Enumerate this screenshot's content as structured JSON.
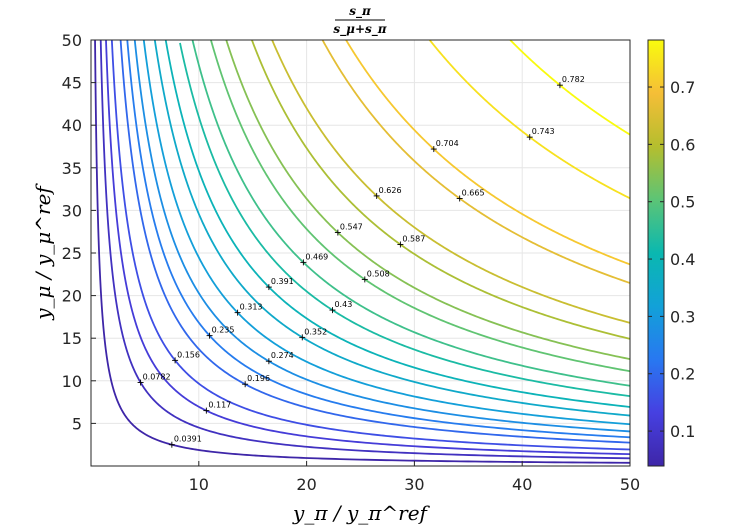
{
  "chart_data": {
    "type": "contour",
    "title": {
      "numerator": "s_π",
      "denominator": "s_μ+s_π"
    },
    "xlabel": "y_π / y_π^ref",
    "ylabel": "y_μ / y_μ^ref",
    "xlim": [
      0,
      50
    ],
    "ylim": [
      0,
      50
    ],
    "xticks": [
      "10",
      "20",
      "30",
      "40",
      "50"
    ],
    "yticks": [
      "5",
      "10",
      "15",
      "20",
      "25",
      "30",
      "35",
      "40",
      "45",
      "50"
    ],
    "grid": true,
    "levels": [
      0.0391,
      0.0782,
      0.117,
      0.156,
      0.196,
      0.235,
      0.274,
      0.313,
      0.352,
      0.391,
      0.43,
      0.469,
      0.508,
      0.547,
      0.587,
      0.626,
      0.665,
      0.704,
      0.743,
      0.782
    ],
    "level_label_texts": [
      "0.0391",
      "0.0782",
      "0.117",
      "0.156",
      "0.196",
      "0.235",
      "0.274",
      "0.313",
      "0.352",
      "0.391",
      "0.43",
      "0.469",
      "0.508",
      "0.547",
      "0.587",
      "0.626",
      "0.665",
      "0.704",
      "0.743",
      "0.782"
    ],
    "level_label_points": [
      [
        7.5,
        2.5
      ],
      [
        4.6,
        9.8
      ],
      [
        10.7,
        6.5
      ],
      [
        7.8,
        12.4
      ],
      [
        14.3,
        9.6
      ],
      [
        11,
        15.3
      ],
      [
        16.5,
        12.3
      ],
      [
        13.6,
        18
      ],
      [
        19.6,
        15.1
      ],
      [
        16.5,
        21
      ],
      [
        22.4,
        18.3
      ],
      [
        19.7,
        23.9
      ],
      [
        25.4,
        21.9
      ],
      [
        22.9,
        27.4
      ],
      [
        28.7,
        26
      ],
      [
        26.5,
        31.7
      ],
      [
        34.2,
        31.4
      ],
      [
        31.8,
        37.2
      ],
      [
        40.7,
        38.6
      ],
      [
        43.5,
        44.7
      ]
    ],
    "colorbar": {
      "range": [
        0.0391,
        0.782
      ],
      "ticks": [
        0.1,
        0.2,
        0.3,
        0.4,
        0.5,
        0.6,
        0.7
      ],
      "tick_labels": [
        "0.1",
        "0.2",
        "0.3",
        "0.4",
        "0.5",
        "0.6",
        "0.7"
      ],
      "colormap": "parula"
    }
  }
}
